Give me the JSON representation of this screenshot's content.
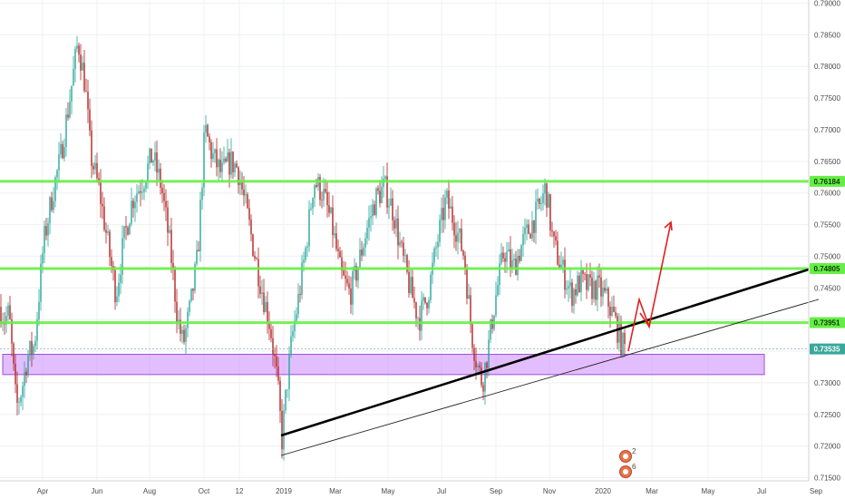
{
  "chart_data": {
    "type": "candlestick",
    "title": "",
    "xlabel": "",
    "ylabel": "",
    "ylim": [
      0.7145,
      0.7905
    ],
    "x_ticks": [
      "Apr",
      "Jun",
      "Aug",
      "Oct",
      "12",
      "2019",
      "Mar",
      "May",
      "Jul",
      "Sep",
      "Nov",
      "2020",
      "Mar",
      "May",
      "Jul",
      "Sep"
    ],
    "y_ticks": [
      "0.79000",
      "0.78500",
      "0.78000",
      "0.77500",
      "0.77000",
      "0.76500",
      "0.76000",
      "0.75500",
      "0.75000",
      "0.74500",
      "0.74000",
      "0.73500",
      "0.73000",
      "0.72500",
      "0.72000",
      "0.71500"
    ],
    "y_tick_values": [
      0.79,
      0.785,
      0.78,
      0.775,
      0.77,
      0.765,
      0.76,
      0.755,
      0.75,
      0.745,
      0.74,
      0.735,
      0.73,
      0.725,
      0.72,
      0.715
    ],
    "horizontal_levels": [
      {
        "value": 0.76184,
        "label": "0.76184"
      },
      {
        "value": 0.74805,
        "label": "0.74805"
      },
      {
        "value": 0.73951,
        "label": "0.73951"
      }
    ],
    "current_price": {
      "value": 0.73535,
      "label": "0.73535"
    },
    "support_zone": {
      "from": 0.7313,
      "to": 0.7345
    },
    "candle_colors": {
      "up": "#26a69a",
      "down": "#b22222"
    },
    "level_color": "#66ee44",
    "zone_color": "#cc88ff",
    "projection_color": "#e02020",
    "grid": true,
    "event_badges": [
      "2",
      "6"
    ]
  }
}
